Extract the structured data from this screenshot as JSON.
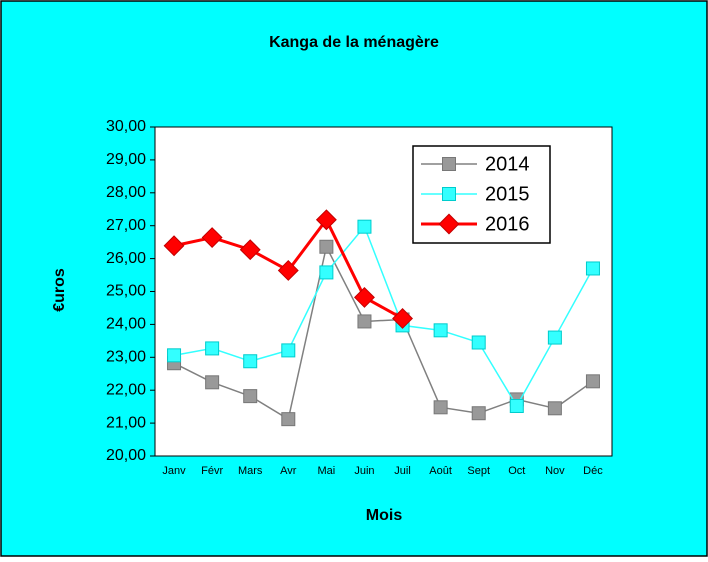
{
  "chart_data": {
    "type": "line",
    "title": "Kanga de la ménagère",
    "x_label": "Mois",
    "y_label": "€uros",
    "categories": [
      "Janv",
      "Févr",
      "Mars",
      "Avr",
      "Mai",
      "Juin",
      "Juil",
      "Août",
      "Sept",
      "Oct",
      "Nov",
      "Déc"
    ],
    "series": [
      {
        "name": "2014",
        "color": "#999999",
        "marker": "square",
        "values": [
          22.82,
          22.24,
          21.82,
          21.12,
          26.36,
          24.09,
          24.15,
          21.48,
          21.3,
          21.72,
          21.45,
          22.27
        ]
      },
      {
        "name": "2015",
        "color": "#33ffff",
        "marker": "square",
        "values": [
          23.06,
          23.27,
          22.88,
          23.21,
          25.58,
          26.97,
          23.97,
          23.82,
          23.45,
          21.52,
          23.6,
          25.7
        ]
      },
      {
        "name": "2016",
        "color": "#ff0000",
        "marker": "diamond",
        "values": [
          26.39,
          26.64,
          26.27,
          25.64,
          27.18,
          24.82,
          24.18,
          null,
          null,
          null,
          null,
          null
        ]
      }
    ],
    "ylim": [
      20,
      30
    ],
    "yticks": [
      {
        "value": 20,
        "label": "20,00"
      },
      {
        "value": 21,
        "label": "21,00"
      },
      {
        "value": 22,
        "label": "22,00"
      },
      {
        "value": 23,
        "label": "23,00"
      },
      {
        "value": 24,
        "label": "24,00"
      },
      {
        "value": 25,
        "label": "25,00"
      },
      {
        "value": 26,
        "label": "26,00"
      },
      {
        "value": 27,
        "label": "27,00"
      },
      {
        "value": 28,
        "label": "28,00"
      },
      {
        "value": 29,
        "label": "29,00"
      },
      {
        "value": 30,
        "label": "30,00"
      }
    ],
    "grid": false,
    "legend": "top-right"
  }
}
